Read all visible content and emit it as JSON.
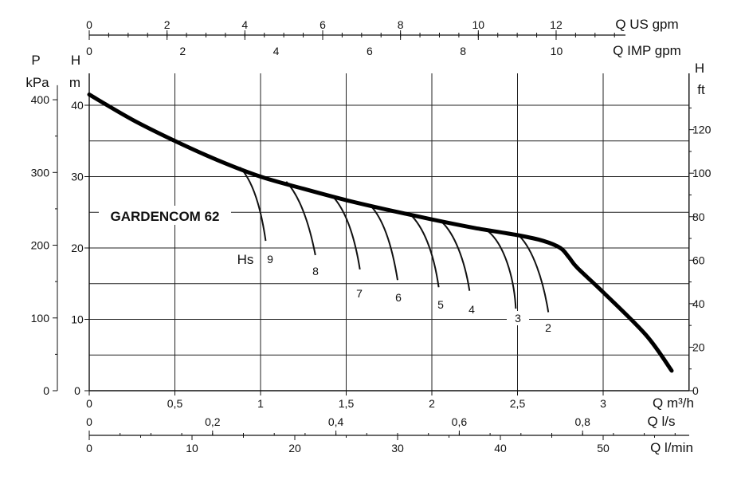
{
  "chart_data": {
    "type": "line",
    "title": "GARDENCOM 62",
    "grid": true,
    "xlim": [
      0,
      3.5
    ],
    "ylim": [
      0,
      44
    ],
    "axes": {
      "x_m3h": {
        "label": "Q m³/h",
        "ticks": [
          "0",
          "0,5",
          "1",
          "1,5",
          "2",
          "2,5",
          "3"
        ],
        "values": [
          0,
          0.5,
          1,
          1.5,
          2,
          2.5,
          3
        ]
      },
      "x_ls": {
        "label": "Q l/s",
        "ticks": [
          "0",
          "0,2",
          "0,4",
          "0,6",
          "0,8"
        ],
        "values": [
          0,
          0.2,
          0.4,
          0.6,
          0.8
        ]
      },
      "x_lmin": {
        "label": "Q l/min",
        "ticks": [
          "0",
          "10",
          "20",
          "30",
          "40",
          "50"
        ],
        "values": [
          0,
          10,
          20,
          30,
          40,
          50
        ]
      },
      "x_usgpm": {
        "label": "Q US gpm",
        "ticks": [
          "0",
          "2",
          "4",
          "6",
          "8",
          "10",
          "12"
        ],
        "values": [
          0,
          2,
          4,
          6,
          8,
          10,
          12
        ]
      },
      "x_impgpm": {
        "label": "Q IMP gpm",
        "ticks": [
          "0",
          "2",
          "4",
          "6",
          "8",
          "10"
        ],
        "values": [
          0,
          2,
          4,
          6,
          8,
          10
        ]
      },
      "y_m": {
        "label_top": "H",
        "label_bottom": "m",
        "ticks": [
          "0",
          "10",
          "20",
          "30",
          "40"
        ],
        "values": [
          0,
          10,
          20,
          30,
          40
        ]
      },
      "y_kpa": {
        "label_top": "P",
        "label_bottom": "kPa",
        "ticks": [
          "0",
          "100",
          "200",
          "300",
          "400"
        ],
        "values": [
          0,
          100,
          200,
          300,
          400
        ]
      },
      "y_ft": {
        "label_top": "H",
        "label_bottom": "ft",
        "ticks": [
          "0",
          "20",
          "40",
          "60",
          "80",
          "100",
          "120"
        ],
        "values": [
          0,
          20,
          40,
          60,
          80,
          100,
          120
        ]
      }
    },
    "series": [
      {
        "x": [
          0,
          0.25,
          0.5,
          0.75,
          1.0,
          1.25,
          1.5,
          1.75,
          2.0,
          2.25,
          2.5,
          2.65,
          2.75,
          2.8,
          2.85,
          3.0,
          3.25,
          3.4
        ],
        "y": [
          41.5,
          38.0,
          35.0,
          32.3,
          30.0,
          28.3,
          26.7,
          25.3,
          24.0,
          22.8,
          21.8,
          21.0,
          20.0,
          18.7,
          17.2,
          13.8,
          7.8,
          2.8
        ]
      }
    ],
    "hs_label": "Hs",
    "hs_curves": [
      {
        "label": "9",
        "points": [
          [
            0.88,
            31.3
          ],
          [
            0.95,
            29.5
          ],
          [
            1.0,
            26.0
          ],
          [
            1.03,
            21.0
          ]
        ]
      },
      {
        "label": "8",
        "points": [
          [
            1.15,
            29.3
          ],
          [
            1.22,
            27.5
          ],
          [
            1.28,
            24.0
          ],
          [
            1.32,
            19.0
          ]
        ]
      },
      {
        "label": "7",
        "points": [
          [
            1.43,
            27.0
          ],
          [
            1.5,
            25.0
          ],
          [
            1.55,
            21.5
          ],
          [
            1.58,
            17.0
          ]
        ]
      },
      {
        "label": "6",
        "points": [
          [
            1.64,
            26.0
          ],
          [
            1.72,
            24.0
          ],
          [
            1.77,
            20.0
          ],
          [
            1.8,
            15.5
          ]
        ]
      },
      {
        "label": "5",
        "points": [
          [
            1.87,
            24.8
          ],
          [
            1.95,
            23.0
          ],
          [
            2.01,
            19.5
          ],
          [
            2.04,
            14.5
          ]
        ]
      },
      {
        "label": "4",
        "points": [
          [
            2.06,
            23.6
          ],
          [
            2.13,
            22.0
          ],
          [
            2.19,
            18.5
          ],
          [
            2.22,
            14.0
          ]
        ]
      },
      {
        "label": "3",
        "points": [
          [
            2.33,
            22.3
          ],
          [
            2.42,
            20.5
          ],
          [
            2.48,
            16.0
          ],
          [
            2.49,
            11.5
          ]
        ]
      },
      {
        "label": "2",
        "points": [
          [
            2.51,
            21.7
          ],
          [
            2.59,
            19.8
          ],
          [
            2.65,
            15.5
          ],
          [
            2.68,
            11.0
          ]
        ]
      }
    ]
  }
}
